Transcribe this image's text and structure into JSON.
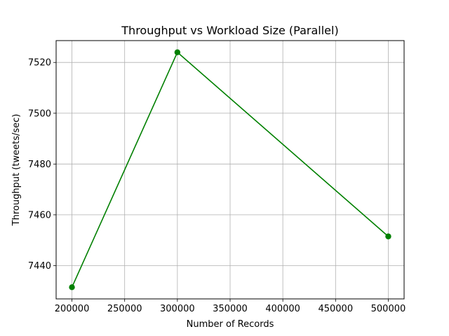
{
  "chart_data": {
    "type": "line",
    "title": "Throughput vs Workload Size (Parallel)",
    "xlabel": "Number of Records",
    "ylabel": "Throughput (tweets/sec)",
    "x": [
      200000,
      300000,
      500000
    ],
    "series": [
      {
        "values": [
          7431.5,
          7524.0,
          7451.5
        ],
        "color": "#008000",
        "marker": "circle"
      }
    ],
    "xlim": [
      185000,
      515000
    ],
    "ylim": [
      7426.9,
      7528.6
    ],
    "xticks": [
      200000,
      250000,
      300000,
      350000,
      400000,
      450000,
      500000
    ],
    "xtick_labels": [
      "200000",
      "250000",
      "300000",
      "350000",
      "400000",
      "450000",
      "500000"
    ],
    "yticks": [
      7440,
      7460,
      7480,
      7500,
      7520
    ],
    "ytick_labels": [
      "7440",
      "7460",
      "7480",
      "7500",
      "7520"
    ],
    "grid": true,
    "grid_color": "#b0b0b0"
  }
}
